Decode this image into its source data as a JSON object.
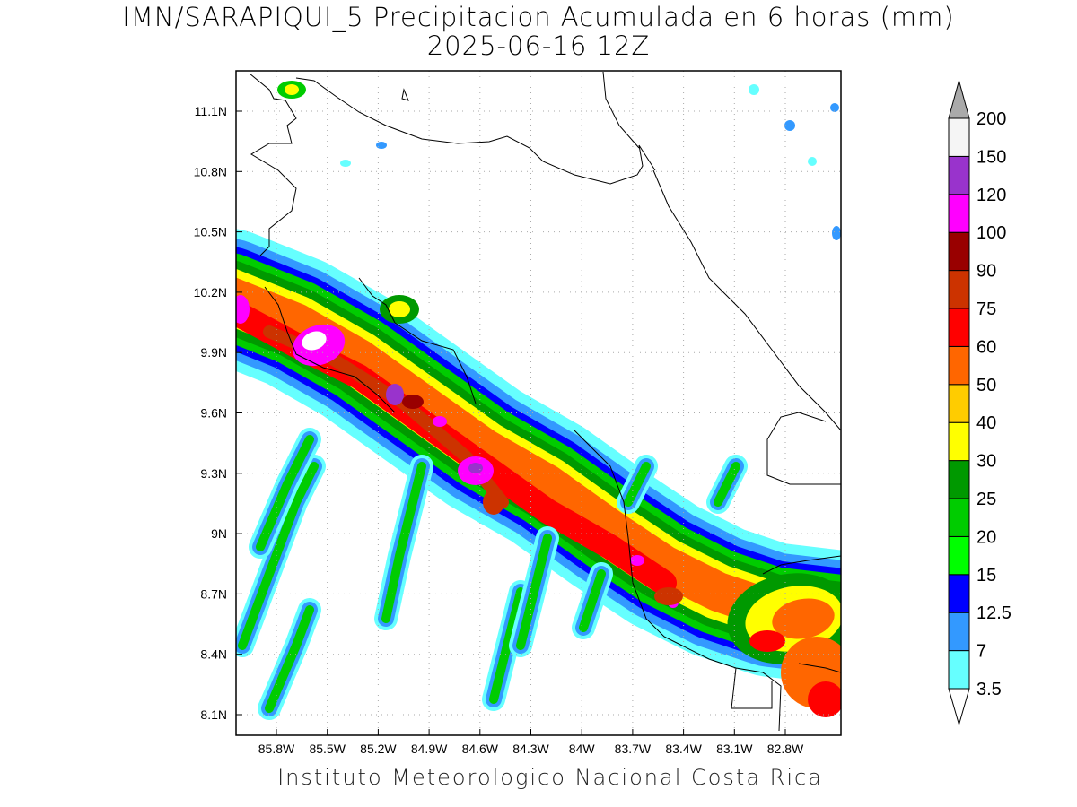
{
  "title": "IMN/SARAPIQUI_5 Precipitacion Acumulada en 6 horas (mm)",
  "subtitle": "2025-06-16 12Z",
  "credit": "Instituto Meteorologico Nacional Costa Rica",
  "map": {
    "lon_ticks": [
      "85.8W",
      "85.5W",
      "85.2W",
      "84.9W",
      "84.6W",
      "84.3W",
      "84W",
      "83.7W",
      "83.4W",
      "83.1W",
      "82.8W"
    ],
    "lat_ticks": [
      "11.1N",
      "10.8N",
      "10.5N",
      "10.2N",
      "9.9N",
      "9.6N",
      "9.3N",
      "9N",
      "8.7N",
      "8.4N",
      "8.1N"
    ],
    "grid": "dotted"
  },
  "colorbar": {
    "labels": [
      "3.5",
      "7",
      "12.5",
      "15",
      "20",
      "25",
      "30",
      "40",
      "50",
      "60",
      "75",
      "90",
      "100",
      "120",
      "150",
      "200"
    ],
    "colors": [
      "#ffffff",
      "#66ffff",
      "#3399ff",
      "#0000ff",
      "#00ff00",
      "#00cc00",
      "#009900",
      "#ffff00",
      "#ffcc00",
      "#ff6600",
      "#ff0000",
      "#cc3300",
      "#990000",
      "#ff00ff",
      "#9933cc",
      "#f5f5f5",
      "#aaaaaa"
    ]
  }
}
